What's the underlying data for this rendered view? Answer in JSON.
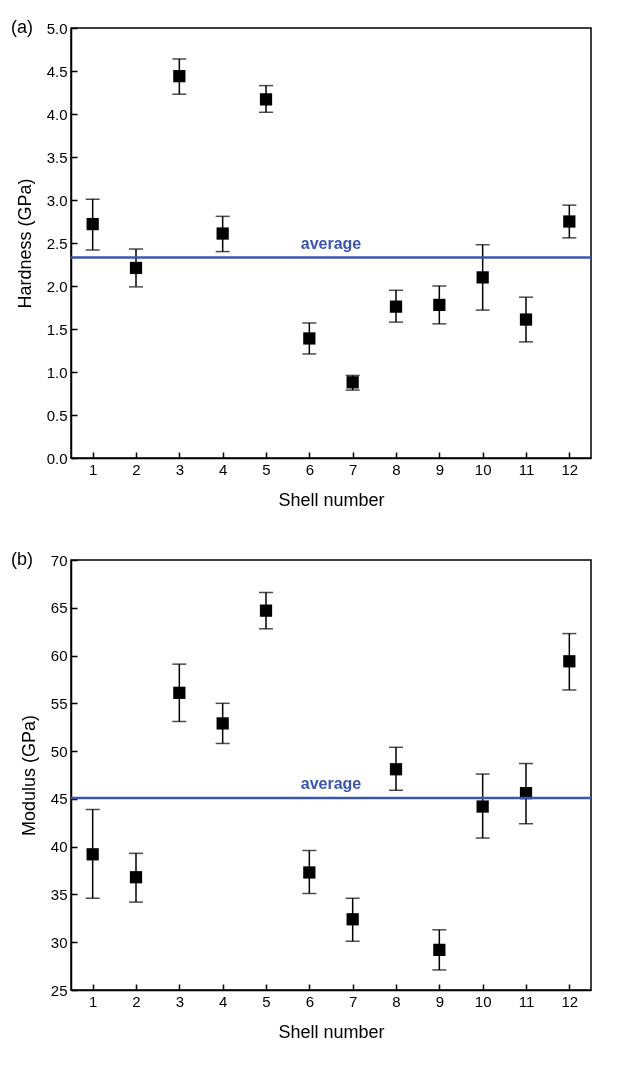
{
  "chart_data": [
    {
      "type": "scatter",
      "annotations": [
        "(a)"
      ],
      "xlabel": "Shell number",
      "ylabel": "Hardness (GPa)",
      "x": [
        1,
        2,
        3,
        4,
        5,
        6,
        7,
        8,
        9,
        10,
        11,
        12
      ],
      "series": [
        {
          "color": "#000000",
          "values": [
            2.72,
            2.21,
            4.44,
            2.61,
            4.17,
            1.39,
            0.88,
            1.76,
            1.78,
            2.1,
            1.61,
            2.75
          ],
          "errors": [
            [
              2.42,
              3.01
            ],
            [
              1.99,
              2.43
            ],
            [
              4.23,
              4.64
            ],
            [
              2.4,
              2.81
            ],
            [
              4.02,
              4.33
            ],
            [
              1.21,
              1.57
            ],
            [
              0.79,
              0.96
            ],
            [
              1.58,
              1.95
            ],
            [
              1.56,
              2.0
            ],
            [
              1.72,
              2.48
            ],
            [
              1.35,
              1.87
            ],
            [
              2.56,
              2.94
            ]
          ]
        }
      ],
      "marker": "square",
      "xlim": [
        0.5,
        12.5
      ],
      "xticks": [
        1,
        2,
        3,
        4,
        5,
        6,
        7,
        8,
        9,
        10,
        11,
        12
      ],
      "ylim": [
        0,
        5
      ],
      "yticks": [
        {
          "value": 0,
          "label": "0.0"
        },
        0.5,
        {
          "value": 1,
          "label": "1.0"
        },
        1.5,
        {
          "value": 2,
          "label": "2.0"
        },
        2.5,
        {
          "value": 3,
          "label": "3.0"
        },
        3.5,
        {
          "value": 4,
          "label": "4.0"
        },
        4.5,
        {
          "value": 5,
          "label": "5.0"
        }
      ],
      "ref_lines": [
        {
          "axis": "y",
          "value": 2.33,
          "label": "average",
          "color": "#3a56b0"
        }
      ],
      "grid": false
    },
    {
      "type": "scatter",
      "annotations": [
        "(b)"
      ],
      "xlabel": "Shell number",
      "ylabel": "Modulus (GPa)",
      "x": [
        1,
        2,
        3,
        4,
        5,
        6,
        7,
        8,
        9,
        10,
        11,
        12
      ],
      "series": [
        {
          "color": "#000000",
          "values": [
            39.2,
            36.8,
            56.1,
            52.9,
            64.7,
            37.3,
            32.4,
            48.1,
            29.2,
            44.2,
            45.6,
            59.4
          ],
          "errors": [
            [
              34.6,
              43.9
            ],
            [
              34.2,
              39.3
            ],
            [
              53.1,
              59.1
            ],
            [
              50.8,
              55.0
            ],
            [
              62.8,
              66.6
            ],
            [
              35.1,
              39.6
            ],
            [
              30.1,
              34.6
            ],
            [
              45.9,
              50.4
            ],
            [
              27.1,
              31.3
            ],
            [
              40.9,
              47.6
            ],
            [
              42.4,
              48.7
            ],
            [
              56.4,
              62.3
            ]
          ]
        }
      ],
      "marker": "square",
      "xlim": [
        0.5,
        12.5
      ],
      "xticks": [
        1,
        2,
        3,
        4,
        5,
        6,
        7,
        8,
        9,
        10,
        11,
        12
      ],
      "ylim": [
        25,
        70
      ],
      "yticks": [
        25,
        30,
        35,
        40,
        45,
        50,
        55,
        60,
        65,
        70
      ],
      "ref_lines": [
        {
          "axis": "y",
          "value": 45.1,
          "label": "average",
          "color": "#3a56b0"
        }
      ],
      "grid": false
    }
  ]
}
